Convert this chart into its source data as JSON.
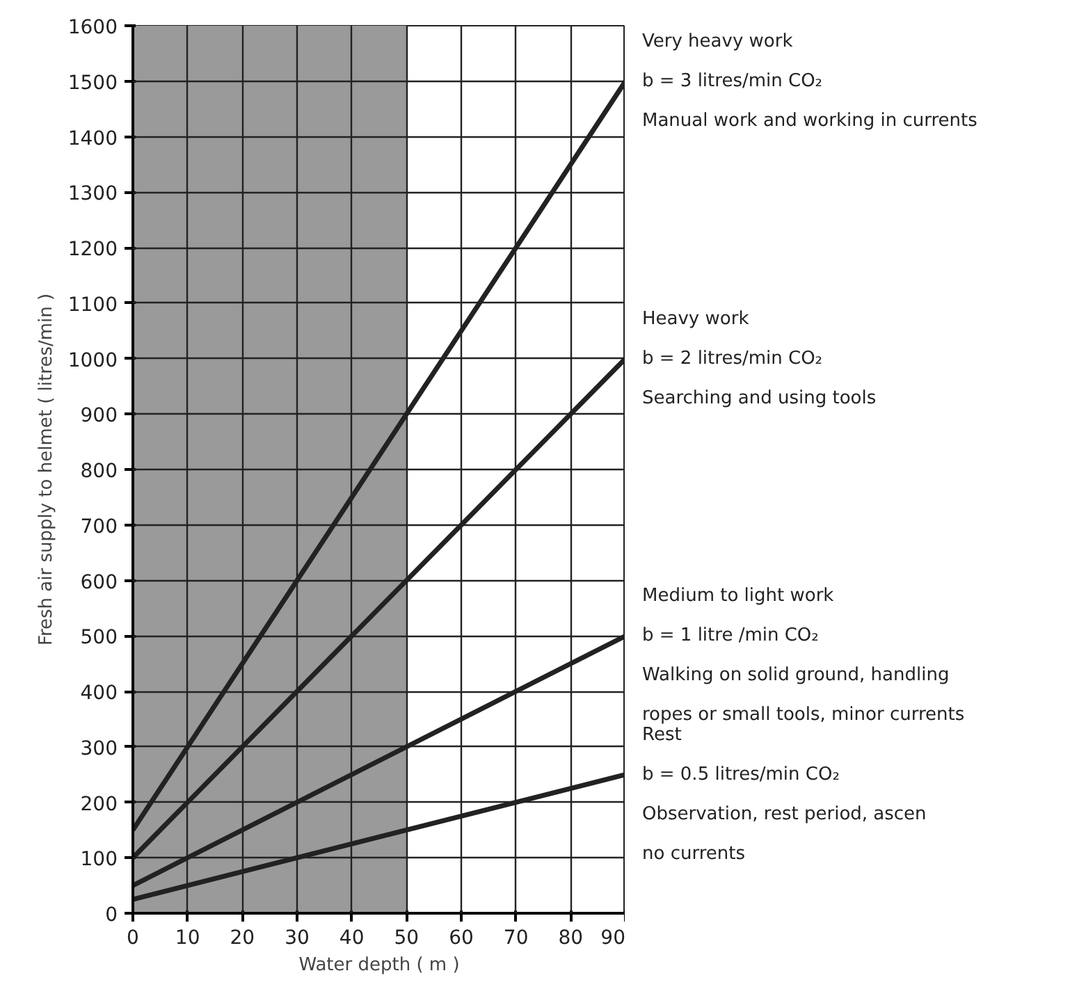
{
  "chart_data": {
    "type": "line",
    "xlabel": "Water depth ( m )",
    "ylabel": "Fresh air supply to helmet ( litres/min )",
    "x": [
      0,
      90
    ],
    "series": [
      {
        "color": "#222222",
        "values": [
          150,
          1500
        ]
      },
      {
        "color": "#222222",
        "values": [
          100,
          1000
        ]
      },
      {
        "color": "#222222",
        "values": [
          50,
          500
        ]
      },
      {
        "color": "#222222",
        "values": [
          25,
          250
        ]
      }
    ],
    "xlim": [
      0,
      90
    ],
    "ylim": [
      0,
      1600
    ],
    "xticks": [
      0,
      10,
      20,
      30,
      40,
      50,
      60,
      70,
      80,
      90
    ],
    "yticks": [
      0,
      100,
      200,
      300,
      400,
      500,
      600,
      700,
      800,
      900,
      1000,
      1100,
      1200,
      1300,
      1400,
      1500,
      1600
    ],
    "grid": true,
    "marker": "none",
    "line_style": "solid",
    "bands": [
      {
        "axis": "x",
        "from": 0,
        "to": 50,
        "color": "#9a9a9a"
      }
    ],
    "annotations": [
      "Very heavy work\nb = 3 litres/min CO₂\nManual work and working in currents",
      "Heavy work\nb = 2 litres/min CO₂\nSearching and using tools",
      "Medium to light work\nb = 1 litre /min CO₂\nWalking on solid ground, handling\nropes or small tools, minor currents",
      "Rest\nb = 0.5 litres/min CO₂\nObservation, rest period, ascen\nno currents"
    ]
  }
}
